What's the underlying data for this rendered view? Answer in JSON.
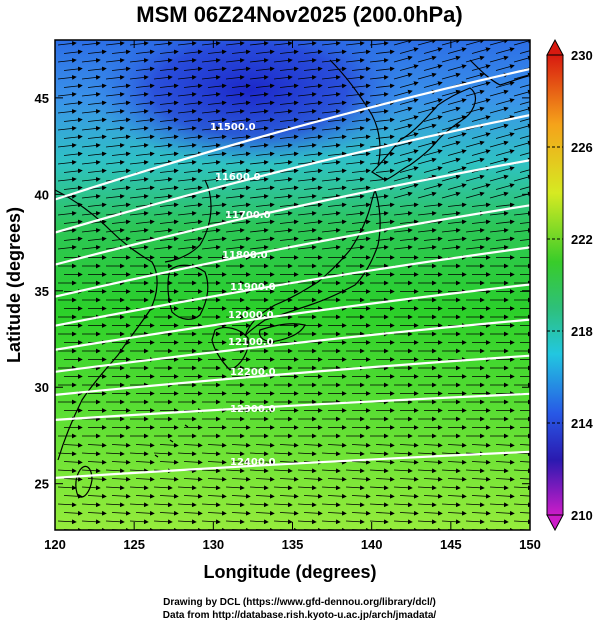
{
  "title": "MSM 06Z24Nov2025 (200.0hPa)",
  "xlabel": "Longitude (degrees)",
  "ylabel": "Latitude  (degrees)",
  "x_ticks": [
    "120",
    "125",
    "130",
    "135",
    "140",
    "145",
    "150"
  ],
  "y_ticks": [
    "25",
    "30",
    "35",
    "40",
    "45"
  ],
  "colorbar": {
    "ticks": [
      "230",
      "226",
      "222",
      "218",
      "214",
      "210"
    ],
    "range": [
      210,
      230
    ]
  },
  "contours": {
    "variable": "geopotential height",
    "labels": [
      "11500.0",
      "11600.0",
      "11700.0",
      "11800.0",
      "11900.0",
      "12000.0",
      "12100.0",
      "12200.0",
      "12300.0",
      "12400.0"
    ]
  },
  "credits": {
    "line1": "Drawing by DCL (https://www.gfd-dennou.org/library/dcl/)",
    "line2": "Data from http://database.rish.kyoto-u.ac.jp/arch/jmadata/"
  },
  "colors": {
    "low": "#2a2ad0",
    "mid": "#25c820",
    "high": "#9ef23a",
    "contour": "#ffffff",
    "arrow": "#000000",
    "coast": "#000000"
  }
}
